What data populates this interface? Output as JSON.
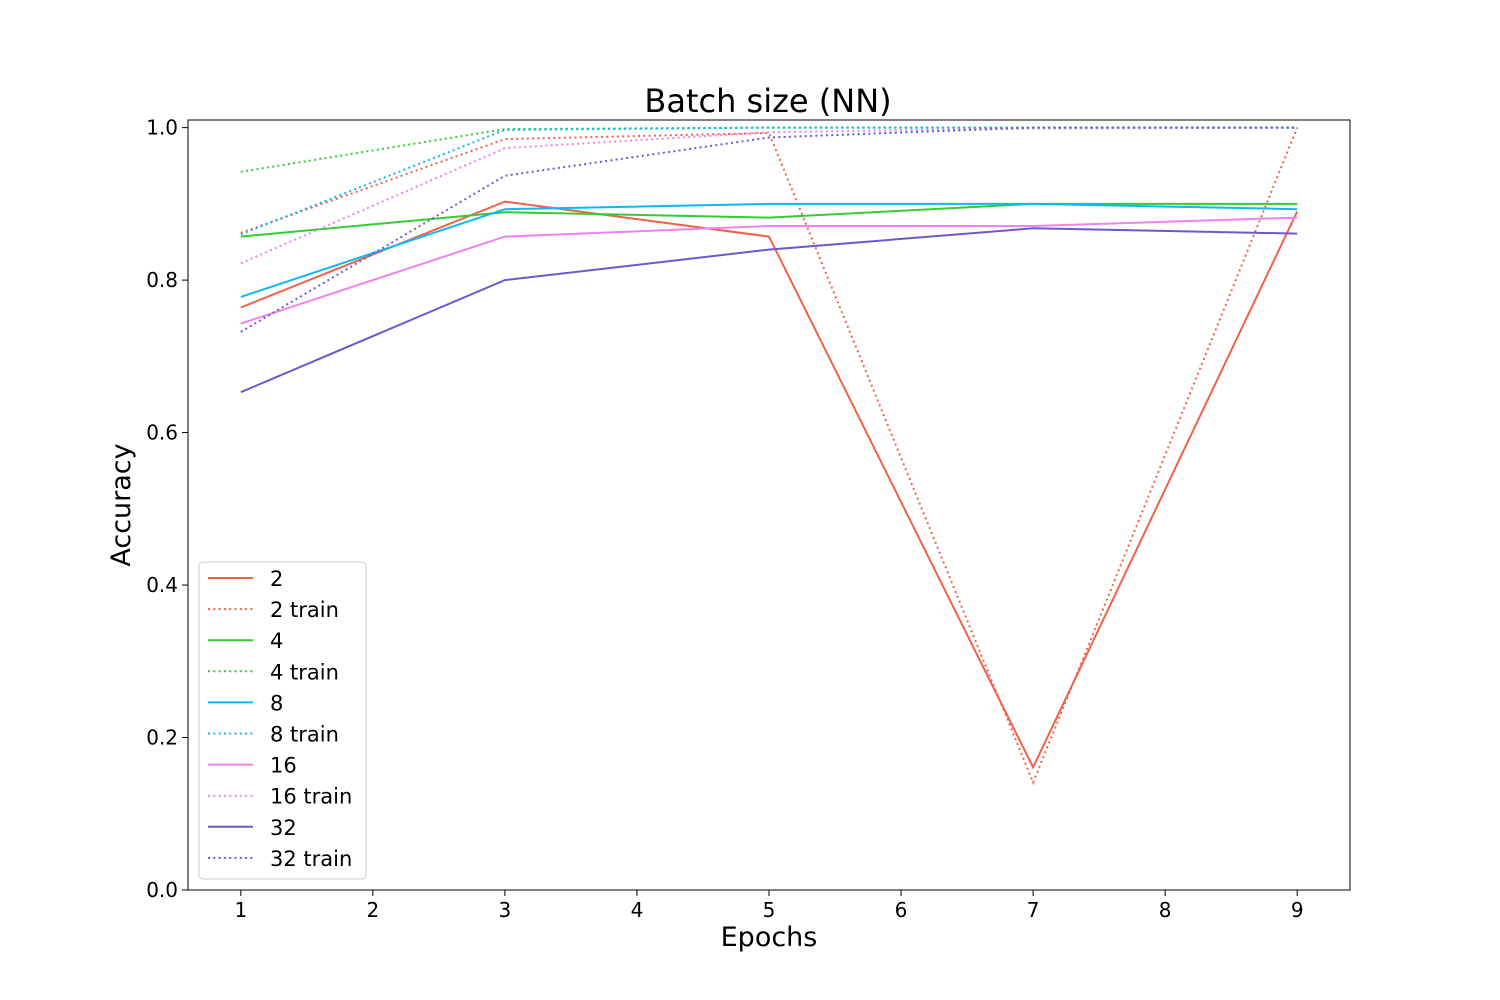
{
  "chart_data": {
    "type": "line",
    "title": "Batch size (NN)",
    "xlabel": "Epochs",
    "ylabel": "Accuracy",
    "xlim": [
      0.6,
      9.4
    ],
    "ylim": [
      0.0,
      1.01
    ],
    "xticks": [
      1,
      2,
      3,
      4,
      5,
      6,
      7,
      8,
      9
    ],
    "xtick_labels": [
      "1",
      "2",
      "3",
      "4",
      "5",
      "6",
      "7",
      "8",
      "9"
    ],
    "yticks": [
      0.0,
      0.2,
      0.4,
      0.6,
      0.8,
      1.0
    ],
    "ytick_labels": [
      "0.0",
      "0.2",
      "0.4",
      "0.6",
      "0.8",
      "1.0"
    ],
    "grid": false,
    "legend_position": "lower-left",
    "x": [
      1,
      3,
      5,
      7,
      9
    ],
    "series": [
      {
        "name": "2",
        "style": "solid",
        "color": "#f0614a",
        "values": [
          0.764,
          0.903,
          0.857,
          0.161,
          0.89
        ]
      },
      {
        "name": "2 train",
        "style": "dotted",
        "color": "#f0614a",
        "values": [
          0.862,
          0.985,
          0.993,
          0.141,
          1.0
        ]
      },
      {
        "name": "4",
        "style": "solid",
        "color": "#33cc33",
        "values": [
          0.857,
          0.889,
          0.882,
          0.9,
          0.9
        ]
      },
      {
        "name": "4 train",
        "style": "dotted",
        "color": "#33cc33",
        "values": [
          0.942,
          0.998,
          1.0,
          1.0,
          1.0
        ]
      },
      {
        "name": "8",
        "style": "solid",
        "color": "#10b8f0",
        "values": [
          0.778,
          0.893,
          0.9,
          0.9,
          0.893
        ]
      },
      {
        "name": "8 train",
        "style": "dotted",
        "color": "#10b8f0",
        "values": [
          0.86,
          0.997,
          1.0,
          1.0,
          1.0
        ]
      },
      {
        "name": "16",
        "style": "solid",
        "color": "#ee82ee",
        "values": [
          0.743,
          0.857,
          0.871,
          0.871,
          0.882
        ]
      },
      {
        "name": "16 train",
        "style": "dotted",
        "color": "#ee82ee",
        "values": [
          0.822,
          0.973,
          0.994,
          0.999,
          1.0
        ]
      },
      {
        "name": "32",
        "style": "solid",
        "color": "#6a5acd",
        "values": [
          0.653,
          0.8,
          0.84,
          0.868,
          0.861
        ]
      },
      {
        "name": "32 train",
        "style": "dotted",
        "color": "#6a5acd",
        "values": [
          0.732,
          0.937,
          0.987,
          1.0,
          1.0
        ]
      }
    ]
  }
}
